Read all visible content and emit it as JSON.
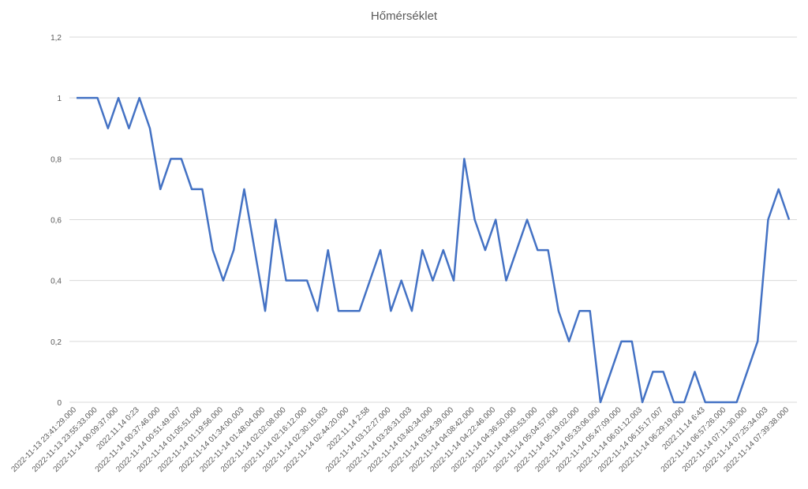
{
  "chart_data": {
    "type": "line",
    "title": "Hőmérséklet",
    "categories": [
      "2022-11-13 23:41:29.000",
      null,
      "2022-11-13 23:55:33.000",
      null,
      "2022-11-14 00:09:37.000",
      null,
      "2022.11.14 0:23",
      null,
      "2022-11-14 00:37:46.000",
      null,
      "2022-11-14 00:51:49.007",
      null,
      "2022-11-14 01:05:51.000",
      null,
      "2022-11-14 01:19:56.000",
      null,
      "2022-11-14 01:34:00.003",
      null,
      "2022-11-14 01:48:04.000",
      null,
      "2022-11-14 02:02:08.000",
      null,
      "2022-11-14 02:16:12.000",
      null,
      "2022-11-14 02:30:15.003",
      null,
      "2022-11-14 02:44:20.000",
      null,
      "2022.11.14 2:58",
      null,
      "2022-11-14 03:12:27.000",
      null,
      "2022-11-14 03:26:31.003",
      null,
      "2022-11-14 03:40:34.000",
      null,
      "2022-11-14 03:54:39.000",
      null,
      "2022-11-14 04:08:42.000",
      null,
      "2022-11-14 04:22:46.000",
      null,
      "2022-11-14 04:36:50.000",
      null,
      "2022-11-14 04:50:53.000",
      null,
      "2022-11-14 05:04:57.000",
      null,
      "2022-11-14 05:19:02.000",
      null,
      "2022-11-14 05:33:06.000",
      null,
      "2022-11-14 05:47:09.000",
      null,
      "2022-11-14 06:01:12.003",
      null,
      "2022-11-14 06:15:17.007",
      null,
      "2022-11-14 06:29:19.000",
      null,
      "2022.11.14 6:43",
      null,
      "2022-11-14 06:57:26.000",
      null,
      "2022-11-14 07:11:30.000",
      null,
      "2022-11-14 07:25:34.003",
      null,
      "2022-11-14 07:39:38.000"
    ],
    "values": [
      1,
      1,
      1,
      0.9,
      1,
      0.9,
      1,
      0.9,
      0.7,
      0.8,
      0.8,
      0.7,
      0.7,
      0.5,
      0.4,
      0.5,
      0.7,
      0.5,
      0.3,
      0.6,
      0.4,
      0.4,
      0.4,
      0.3,
      0.5,
      0.3,
      0.3,
      0.3,
      0.4,
      0.5,
      0.3,
      0.4,
      0.3,
      0.5,
      0.4,
      0.5,
      0.4,
      0.8,
      0.6,
      0.5,
      0.6,
      0.4,
      0.5,
      0.6,
      0.5,
      0.5,
      0.3,
      0.2,
      0.3,
      0.3,
      0,
      0.1,
      0.2,
      0.2,
      0,
      0.1,
      0.1,
      0,
      0,
      0.1,
      0,
      0,
      0,
      0,
      0.1,
      0.2,
      0.6,
      0.7,
      0.6
    ],
    "color": "#4472c4",
    "ylim": [
      0,
      1.2
    ],
    "yticks": [
      0,
      {
        "value": 0.2,
        "label": "0,2"
      },
      {
        "value": 0.4,
        "label": "0,4"
      },
      {
        "value": 0.6,
        "label": "0,6"
      },
      {
        "value": 0.8,
        "label": "0,8"
      },
      1,
      {
        "value": 1.2,
        "label": "1,2"
      }
    ],
    "grid": true
  }
}
